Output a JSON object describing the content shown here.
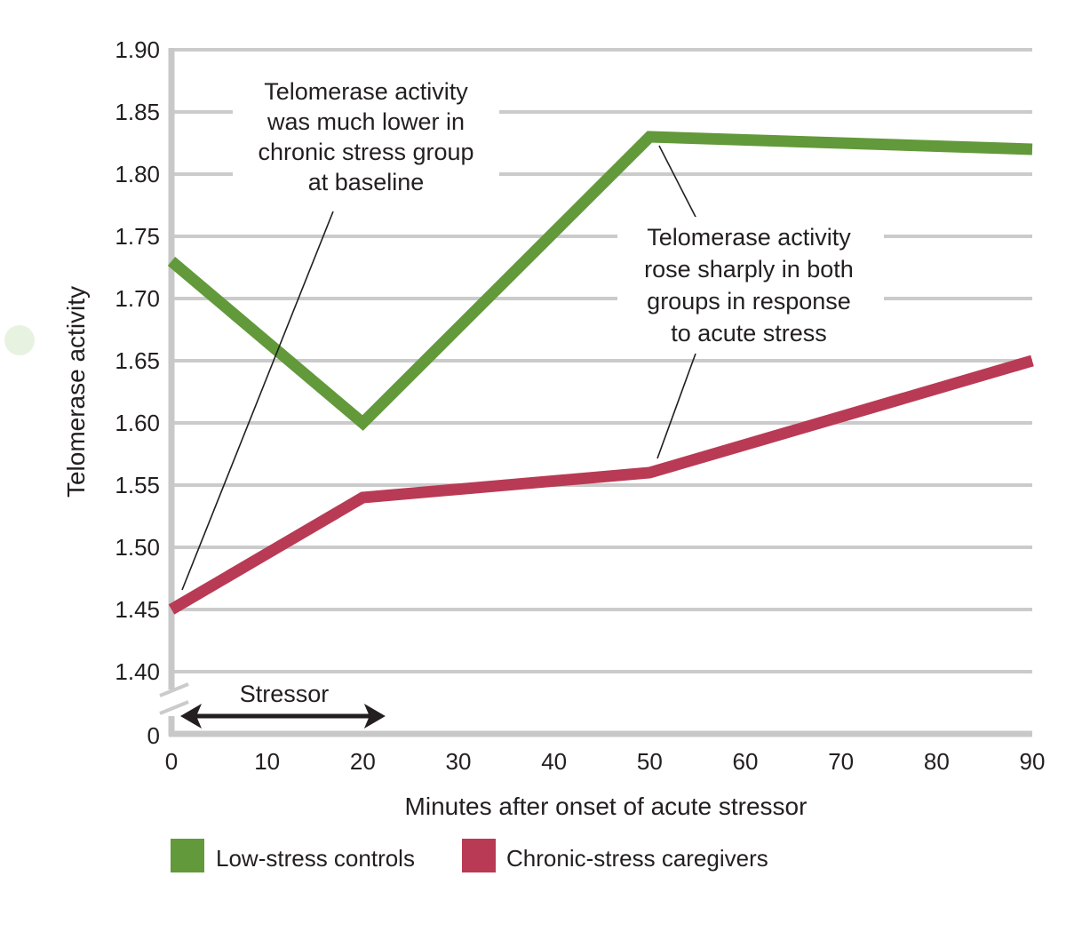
{
  "chart_data": {
    "type": "line",
    "title": "",
    "xlabel": "Minutes after onset of acute stressor",
    "ylabel": "Telomerase activity",
    "xlim": [
      0,
      90
    ],
    "ylim": [
      1.4,
      1.9
    ],
    "y_axis_break": {
      "from": 0,
      "to": 1.4,
      "zero_label": "0"
    },
    "x_ticks": [
      0,
      10,
      20,
      30,
      40,
      50,
      60,
      70,
      80,
      90
    ],
    "y_ticks": [
      1.4,
      1.45,
      1.5,
      1.55,
      1.6,
      1.65,
      1.7,
      1.75,
      1.8,
      1.85,
      1.9
    ],
    "y_tick_labels": [
      "1.40",
      "1.45",
      "1.50",
      "1.55",
      "1.60",
      "1.65",
      "1.70",
      "1.75",
      "1.80",
      "1.85",
      "1.90"
    ],
    "grid": true,
    "series": [
      {
        "name": "Low-stress controls",
        "color": "#62993a",
        "x": [
          0,
          20,
          50,
          90
        ],
        "values": [
          1.73,
          1.6,
          1.83,
          1.82
        ]
      },
      {
        "name": "Chronic-stress caregivers",
        "color": "#b93a54",
        "x": [
          0,
          20,
          50,
          90
        ],
        "values": [
          1.45,
          1.54,
          1.56,
          1.65
        ]
      }
    ],
    "legend": {
      "placement": "bottom-left",
      "entries": [
        "Low-stress controls",
        "Chronic-stress caregivers"
      ]
    },
    "stressor": {
      "label": "Stressor",
      "x_start": 0,
      "x_end": 22
    },
    "annotations": [
      {
        "lines": [
          "Telomerase activity",
          "was much lower in",
          "chronic stress group",
          "at baseline"
        ],
        "points_to": {
          "series": "Chronic-stress caregivers",
          "x": 0,
          "y": 1.45
        }
      },
      {
        "lines": [
          "Telomerase activity",
          "rose sharply in both",
          "groups in response",
          "to acute stress"
        ],
        "points_to": [
          {
            "series": "Low-stress controls",
            "x": 50,
            "y": 1.83
          },
          {
            "series": "Chronic-stress caregivers",
            "x": 50,
            "y": 1.56
          }
        ]
      }
    ],
    "colors": {
      "grid": "#cbcbcb",
      "axis": "#c8c8c8",
      "text": "#231f20",
      "leader": "#231f20"
    }
  }
}
